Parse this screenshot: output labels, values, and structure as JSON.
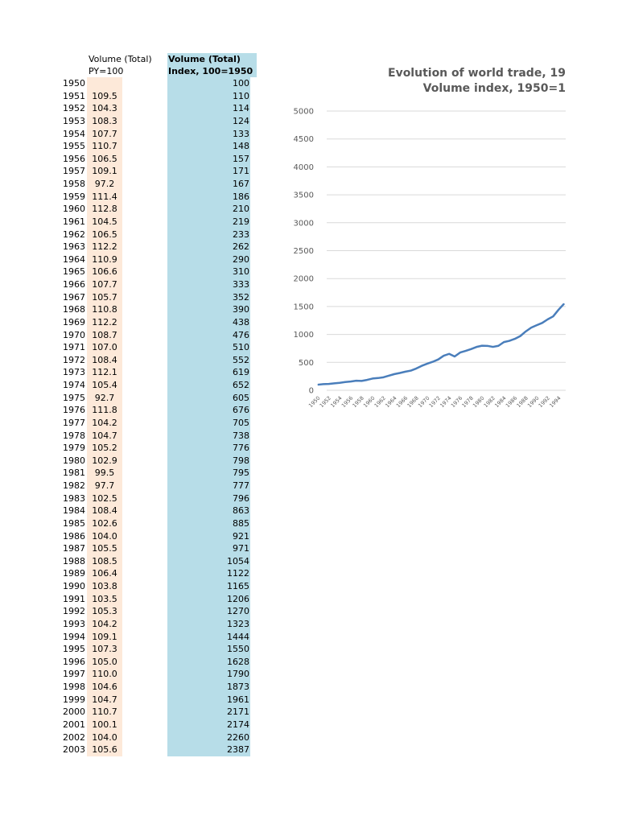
{
  "table": {
    "header_py": [
      "Volume (Total)",
      "PY=100"
    ],
    "header_index": [
      "Volume (Total)",
      "Index, 100=1950"
    ],
    "rows": [
      {
        "year": "1950",
        "py": "",
        "index": "100"
      },
      {
        "year": "1951",
        "py": "109.5",
        "index": "110"
      },
      {
        "year": "1952",
        "py": "104.3",
        "index": "114"
      },
      {
        "year": "1953",
        "py": "108.3",
        "index": "124"
      },
      {
        "year": "1954",
        "py": "107.7",
        "index": "133"
      },
      {
        "year": "1955",
        "py": "110.7",
        "index": "148"
      },
      {
        "year": "1956",
        "py": "106.5",
        "index": "157"
      },
      {
        "year": "1957",
        "py": "109.1",
        "index": "171"
      },
      {
        "year": "1958",
        "py": "97.2",
        "index": "167"
      },
      {
        "year": "1959",
        "py": "111.4",
        "index": "186"
      },
      {
        "year": "1960",
        "py": "112.8",
        "index": "210"
      },
      {
        "year": "1961",
        "py": "104.5",
        "index": "219"
      },
      {
        "year": "1962",
        "py": "106.5",
        "index": "233"
      },
      {
        "year": "1963",
        "py": "112.2",
        "index": "262"
      },
      {
        "year": "1964",
        "py": "110.9",
        "index": "290"
      },
      {
        "year": "1965",
        "py": "106.6",
        "index": "310"
      },
      {
        "year": "1966",
        "py": "107.7",
        "index": "333"
      },
      {
        "year": "1967",
        "py": "105.7",
        "index": "352"
      },
      {
        "year": "1968",
        "py": "110.8",
        "index": "390"
      },
      {
        "year": "1969",
        "py": "112.2",
        "index": "438"
      },
      {
        "year": "1970",
        "py": "108.7",
        "index": "476"
      },
      {
        "year": "1971",
        "py": "107.0",
        "index": "510"
      },
      {
        "year": "1972",
        "py": "108.4",
        "index": "552"
      },
      {
        "year": "1973",
        "py": "112.1",
        "index": "619"
      },
      {
        "year": "1974",
        "py": "105.4",
        "index": "652"
      },
      {
        "year": "1975",
        "py": "92.7",
        "index": "605"
      },
      {
        "year": "1976",
        "py": "111.8",
        "index": "676"
      },
      {
        "year": "1977",
        "py": "104.2",
        "index": "705"
      },
      {
        "year": "1978",
        "py": "104.7",
        "index": "738"
      },
      {
        "year": "1979",
        "py": "105.2",
        "index": "776"
      },
      {
        "year": "1980",
        "py": "102.9",
        "index": "798"
      },
      {
        "year": "1981",
        "py": "99.5",
        "index": "795"
      },
      {
        "year": "1982",
        "py": "97.7",
        "index": "777"
      },
      {
        "year": "1983",
        "py": "102.5",
        "index": "796"
      },
      {
        "year": "1984",
        "py": "108.4",
        "index": "863"
      },
      {
        "year": "1985",
        "py": "102.6",
        "index": "885"
      },
      {
        "year": "1986",
        "py": "104.0",
        "index": "921"
      },
      {
        "year": "1987",
        "py": "105.5",
        "index": "971"
      },
      {
        "year": "1988",
        "py": "108.5",
        "index": "1054"
      },
      {
        "year": "1989",
        "py": "106.4",
        "index": "1122"
      },
      {
        "year": "1990",
        "py": "103.8",
        "index": "1165"
      },
      {
        "year": "1991",
        "py": "103.5",
        "index": "1206"
      },
      {
        "year": "1992",
        "py": "105.3",
        "index": "1270"
      },
      {
        "year": "1993",
        "py": "104.2",
        "index": "1323"
      },
      {
        "year": "1994",
        "py": "109.1",
        "index": "1444"
      },
      {
        "year": "1995",
        "py": "107.3",
        "index": "1550"
      },
      {
        "year": "1996",
        "py": "105.0",
        "index": "1628"
      },
      {
        "year": "1997",
        "py": "110.0",
        "index": "1790"
      },
      {
        "year": "1998",
        "py": "104.6",
        "index": "1873"
      },
      {
        "year": "1999",
        "py": "104.7",
        "index": "1961"
      },
      {
        "year": "2000",
        "py": "110.7",
        "index": "2171"
      },
      {
        "year": "2001",
        "py": "100.1",
        "index": "2174"
      },
      {
        "year": "2002",
        "py": "104.0",
        "index": "2260"
      },
      {
        "year": "2003",
        "py": "105.6",
        "index": "2387"
      }
    ]
  },
  "chart_data": {
    "type": "line",
    "title": [
      "Evolution of world trade, 19",
      "Volume index, 1950=1"
    ],
    "ylim": [
      0,
      5000
    ],
    "yticks": [
      "0",
      "500",
      "1000",
      "1500",
      "2000",
      "2500",
      "3000",
      "3500",
      "4000",
      "4500",
      "5000"
    ],
    "x": [
      1950,
      1951,
      1952,
      1953,
      1954,
      1955,
      1956,
      1957,
      1958,
      1959,
      1960,
      1961,
      1962,
      1963,
      1964,
      1965,
      1966,
      1967,
      1968,
      1969,
      1970,
      1971,
      1972,
      1973,
      1974,
      1975,
      1976,
      1977,
      1978,
      1979,
      1980,
      1981,
      1982,
      1983,
      1984,
      1985,
      1986,
      1987,
      1988,
      1989,
      1990,
      1991,
      1992,
      1993,
      1994,
      1995
    ],
    "xticks": [
      "1950",
      "1952",
      "1954",
      "1956",
      "1958",
      "1960",
      "1962",
      "1964",
      "1966",
      "1968",
      "1970",
      "1972",
      "1974",
      "1976",
      "1978",
      "1980",
      "1982",
      "1984",
      "1986",
      "1988",
      "1990",
      "1992",
      "1994"
    ],
    "series": [
      {
        "values": [
          100,
          110,
          114,
          124,
          133,
          148,
          157,
          171,
          167,
          186,
          210,
          219,
          233,
          262,
          290,
          310,
          333,
          352,
          390,
          438,
          476,
          510,
          552,
          619,
          652,
          605,
          676,
          705,
          738,
          776,
          798,
          795,
          777,
          796,
          863,
          885,
          921,
          971,
          1054,
          1122,
          1165,
          1206,
          1270,
          1323,
          1444,
          1550
        ],
        "color": "#4a7ebb"
      }
    ],
    "grid": true,
    "colors": {
      "grid": "#d9d9d9",
      "axis_text": "#595959",
      "title": "#595959"
    }
  }
}
